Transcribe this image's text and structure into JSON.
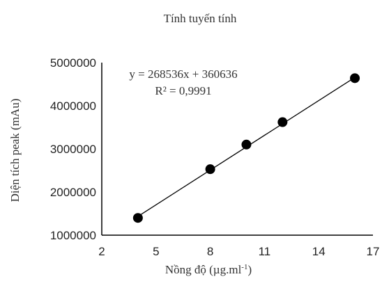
{
  "chart_data": {
    "type": "scatter",
    "title": "Tính tuyến tính",
    "xlabel": "Nồng độ (µg.ml",
    "xlabel_superscript": "-1",
    "xlabel_suffix": ")",
    "ylabel": "Diện tích peak (mAu)",
    "xlim": [
      2,
      17
    ],
    "ylim": [
      1000000,
      5000000
    ],
    "x_ticks": [
      2,
      5,
      8,
      11,
      14,
      17
    ],
    "y_ticks": [
      1000000,
      2000000,
      3000000,
      4000000,
      5000000
    ],
    "x_tick_labels": [
      "2",
      "5",
      "8",
      "11",
      "14",
      "17"
    ],
    "y_tick_labels": [
      "1000000",
      "2000000",
      "3000000",
      "4000000",
      "5000000"
    ],
    "points": [
      {
        "x": 4,
        "y": 1400000
      },
      {
        "x": 8,
        "y": 2530000
      },
      {
        "x": 10,
        "y": 3100000
      },
      {
        "x": 12,
        "y": 3620000
      },
      {
        "x": 16,
        "y": 4640000
      }
    ],
    "trendline": {
      "slope": 268536,
      "intercept": 360636,
      "x_range": [
        4,
        16
      ],
      "equation_text": "y = 268536x + 360636",
      "r2_text": "R² = 0,9991"
    },
    "grid": false,
    "legend": "none",
    "colors": {
      "marker": "#000000",
      "line": "#000000",
      "axis": "#000000"
    }
  }
}
